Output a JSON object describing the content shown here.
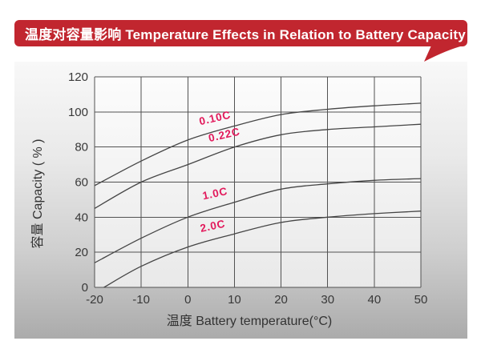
{
  "header": {
    "title": "温度对容量影响 Temperature Effects in Relation to Battery Capacity",
    "bg_color": "#c1262f",
    "text_color": "#ffffff"
  },
  "chart_data": {
    "type": "line",
    "title": "Temperature Effects in Relation to Battery Capacity",
    "xlabel": "温度  Battery temperature(°C)",
    "ylabel": "容量 Capacity ( % )",
    "xlim": [
      -20,
      50
    ],
    "ylim": [
      0,
      120
    ],
    "xticks": [
      -20,
      -10,
      0,
      10,
      20,
      30,
      40,
      50
    ],
    "yticks": [
      0,
      20,
      40,
      60,
      80,
      100,
      120
    ],
    "grid": true,
    "legend_position": "inline-curve-labels",
    "line_color": "#454545",
    "grid_color": "#525252",
    "label_color": "#e2195b",
    "axis_text_color": "#383838",
    "series": [
      {
        "name": "0.10C",
        "points": [
          [
            -20,
            58
          ],
          [
            -10,
            72
          ],
          [
            0,
            84
          ],
          [
            10,
            92
          ],
          [
            20,
            98.5
          ],
          [
            30,
            101.5
          ],
          [
            40,
            103.5
          ],
          [
            50,
            105
          ]
        ],
        "label": {
          "text": "0.10C",
          "x": 6,
          "y": 94.5,
          "angle": -13
        }
      },
      {
        "name": "0.22C",
        "points": [
          [
            -20,
            45
          ],
          [
            -10,
            60
          ],
          [
            0,
            70
          ],
          [
            10,
            80
          ],
          [
            20,
            87
          ],
          [
            30,
            90
          ],
          [
            40,
            91.5
          ],
          [
            50,
            93
          ]
        ],
        "label": {
          "text": "0.22C",
          "x": 8,
          "y": 85,
          "angle": -13
        }
      },
      {
        "name": "1.0C",
        "points": [
          [
            -20,
            14
          ],
          [
            -10,
            28
          ],
          [
            0,
            40
          ],
          [
            10,
            48.5
          ],
          [
            20,
            56
          ],
          [
            30,
            59
          ],
          [
            40,
            61
          ],
          [
            50,
            62
          ]
        ],
        "label": {
          "text": "1.0C",
          "x": 6,
          "y": 51.5,
          "angle": -12
        }
      },
      {
        "name": "2.0C",
        "points": [
          [
            -18,
            0
          ],
          [
            -10,
            12
          ],
          [
            0,
            23
          ],
          [
            10,
            30.5
          ],
          [
            20,
            37
          ],
          [
            30,
            40
          ],
          [
            40,
            42
          ],
          [
            50,
            43.5
          ]
        ],
        "label": {
          "text": "2.0C",
          "x": 5.5,
          "y": 33,
          "angle": -12
        }
      }
    ]
  }
}
